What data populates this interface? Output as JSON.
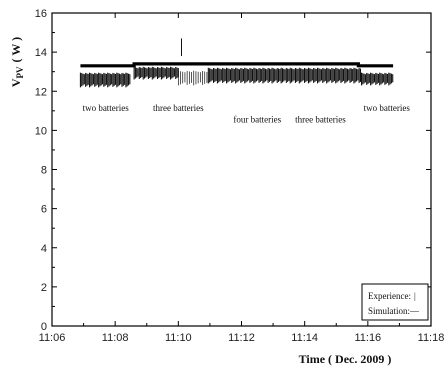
{
  "chart_data": {
    "type": "line",
    "xlabel": "Time ( Dec. 2009 )",
    "ylabel": "V",
    "ylabel_sub": "PV",
    "ylabel_unit": "( W )",
    "xlim": [
      0,
      12
    ],
    "ylim": [
      0,
      16
    ],
    "x_ticks": [
      0,
      2,
      4,
      6,
      8,
      10,
      12
    ],
    "x_tick_labels": [
      "11:06",
      "11:08",
      "11:10",
      "11:12",
      "11:14",
      "11:16",
      "11:18"
    ],
    "y_ticks": [
      0,
      2,
      4,
      6,
      8,
      10,
      12,
      14,
      16
    ],
    "y_tick_labels": [
      "0",
      "2",
      "4",
      "6",
      "8",
      "10",
      "12",
      "14",
      "16"
    ],
    "series": [
      {
        "name": "Simulation",
        "legend_symbol": "—",
        "style": "step",
        "segments": [
          {
            "x0": 0.9,
            "x1": 2.6,
            "y": 13.3
          },
          {
            "x0": 2.6,
            "x1": 9.7,
            "y": 13.4
          },
          {
            "x0": 9.7,
            "x1": 10.8,
            "y": 13.3
          }
        ]
      },
      {
        "name": "Experience",
        "legend_symbol": "|",
        "style": "vertical-ticks",
        "bands": [
          {
            "x0": 0.9,
            "x1": 2.5,
            "low": 12.2,
            "high": 12.95
          },
          {
            "x0": 2.6,
            "x1": 4.0,
            "low": 12.6,
            "high": 13.25
          },
          {
            "x0": 4.0,
            "x1": 4.95,
            "low": 12.3,
            "high": 13.05
          },
          {
            "x0": 4.95,
            "x1": 9.8,
            "low": 12.4,
            "high": 13.2
          },
          {
            "x0": 9.8,
            "x1": 10.8,
            "low": 12.3,
            "high": 12.95
          }
        ],
        "outlier": {
          "x": 4.1,
          "low": 13.8,
          "high": 14.7
        }
      }
    ],
    "annotations": [
      {
        "text": "two batteries",
        "x": 1.7,
        "y": 11.0
      },
      {
        "text": "three batteries",
        "x": 4.0,
        "y": 11.0
      },
      {
        "text": "four batteries",
        "x": 6.5,
        "y": 10.4
      },
      {
        "text": "three batteries",
        "x": 8.5,
        "y": 10.4
      },
      {
        "text": "two batteries",
        "x": 10.6,
        "y": 11.0
      }
    ],
    "legend": {
      "position": "bottom-right",
      "entries": [
        {
          "label": "Experience:",
          "symbol": "|"
        },
        {
          "label": "Simulation:",
          "symbol": "—"
        }
      ]
    },
    "grid": false,
    "colors": {
      "line": "#000000",
      "marks": "#111111"
    }
  }
}
